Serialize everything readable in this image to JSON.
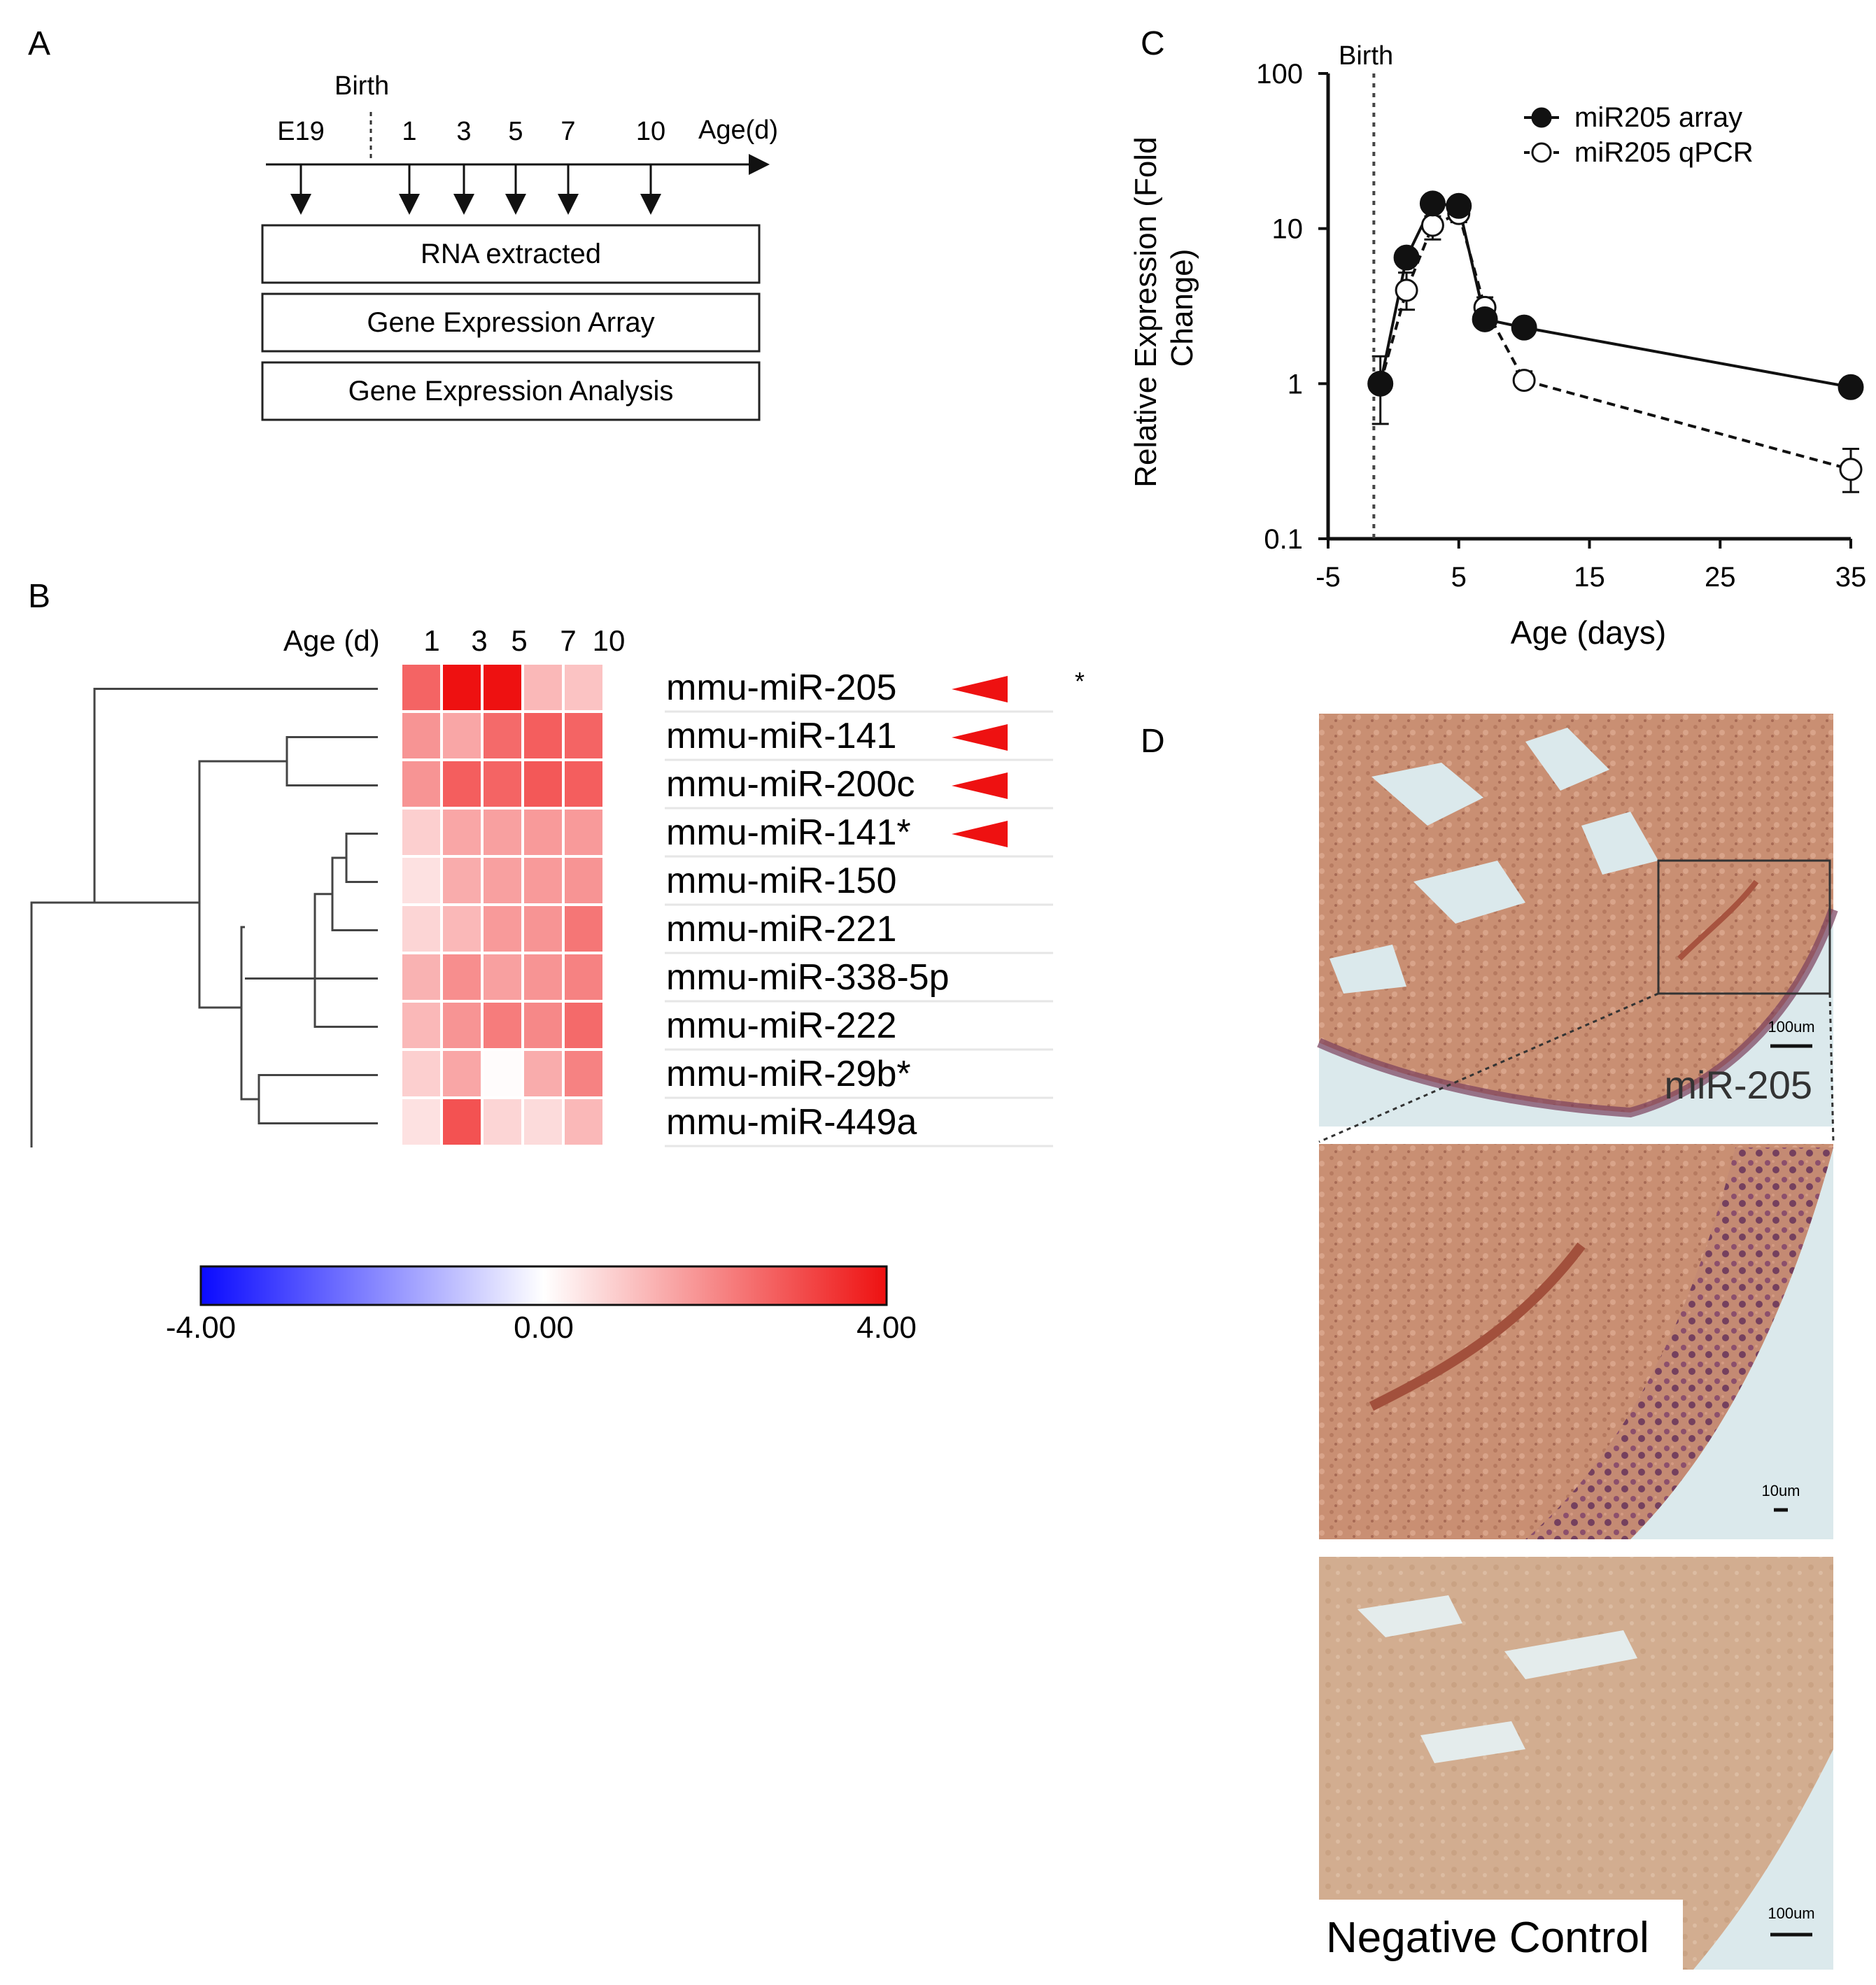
{
  "panels": {
    "a": "A",
    "b": "B",
    "c": "C",
    "d": "D"
  },
  "workflow": {
    "birth_label": "Birth",
    "axis_label": "Age(d)",
    "timepoints": [
      "E19",
      "1",
      "3",
      "5",
      "7",
      "10"
    ],
    "steps": [
      "RNA extracted",
      "Gene Expression Array",
      "Gene Expression Analysis"
    ]
  },
  "heatmap": {
    "age_label": "Age (d)",
    "ages": [
      "1",
      "3",
      "5",
      "7",
      "10"
    ],
    "rows": [
      {
        "name": "mmu-miR-205",
        "values": [
          2.6,
          4.0,
          4.0,
          1.2,
          1.0
        ],
        "arrow": true,
        "note": "*"
      },
      {
        "name": "mmu-miR-141",
        "values": [
          1.8,
          1.5,
          2.5,
          2.7,
          2.6
        ],
        "arrow": true,
        "note": ""
      },
      {
        "name": "mmu-miR-200c",
        "values": [
          1.8,
          2.7,
          2.6,
          2.8,
          2.7
        ],
        "arrow": true,
        "note": ""
      },
      {
        "name": "mmu-miR-141*",
        "values": [
          0.8,
          1.5,
          1.6,
          1.7,
          1.7
        ],
        "arrow": true,
        "note": ""
      },
      {
        "name": "mmu-miR-150",
        "values": [
          0.5,
          1.4,
          1.6,
          1.7,
          1.8
        ],
        "arrow": false,
        "note": ""
      },
      {
        "name": "mmu-miR-221",
        "values": [
          0.7,
          1.2,
          1.7,
          1.8,
          2.3
        ],
        "arrow": false,
        "note": ""
      },
      {
        "name": "mmu-miR-338-5p",
        "values": [
          1.3,
          1.9,
          1.6,
          1.8,
          2.1
        ],
        "arrow": false,
        "note": ""
      },
      {
        "name": "mmu-miR-222",
        "values": [
          1.2,
          1.8,
          2.2,
          2.0,
          2.5
        ],
        "arrow": false,
        "note": ""
      },
      {
        "name": "mmu-miR-29b*",
        "values": [
          0.8,
          1.5,
          0.05,
          1.4,
          2.1
        ],
        "arrow": false,
        "note": ""
      },
      {
        "name": "mmu-miR-449a",
        "values": [
          0.5,
          2.9,
          0.7,
          0.6,
          1.2
        ],
        "arrow": false,
        "note": ""
      }
    ]
  },
  "colorbar": {
    "min_label": "-4.00",
    "mid_label": "0.00",
    "max_label": "4.00",
    "colors": [
      "#0a0aff",
      "#ffffff",
      "#ee1111"
    ]
  },
  "chart_data": {
    "type": "line",
    "xlabel": "Age (days)",
    "ylabel": "Relative Expression (Fold Change)",
    "xlim": [
      -5,
      35
    ],
    "ylim": [
      0.1,
      100
    ],
    "yscale": "log",
    "xticks": [
      -5,
      5,
      15,
      25,
      35
    ],
    "yticks": [
      0.1,
      1,
      10,
      100
    ],
    "annotation": {
      "text": "Birth",
      "x": -1.5
    },
    "legend_position": "top-right",
    "series": [
      {
        "name": "miR205 array",
        "marker": "filled-circle",
        "line": "solid",
        "x": [
          -1,
          1,
          3,
          5,
          7,
          10,
          35
        ],
        "y": [
          1.0,
          6.5,
          14.5,
          14.0,
          2.6,
          2.3,
          0.95
        ]
      },
      {
        "name": "miR205 qPCR",
        "marker": "open-circle",
        "line": "dashed",
        "x": [
          -1,
          1,
          3,
          5,
          7,
          10,
          35
        ],
        "y": [
          1.0,
          4.0,
          10.5,
          12.5,
          3.1,
          1.05,
          0.28
        ],
        "err_low": [
          0.55,
          3.0,
          8.5,
          11.0,
          2.6,
          0.95,
          0.2
        ],
        "err_high": [
          1.5,
          5.2,
          12.0,
          14.0,
          3.6,
          1.2,
          0.38
        ]
      }
    ]
  },
  "micrographs": {
    "top_label": "miR-205",
    "top_scale": "100um",
    "middle_scale": "10um",
    "bottom_label": "Negative Control",
    "bottom_scale": "100um"
  }
}
